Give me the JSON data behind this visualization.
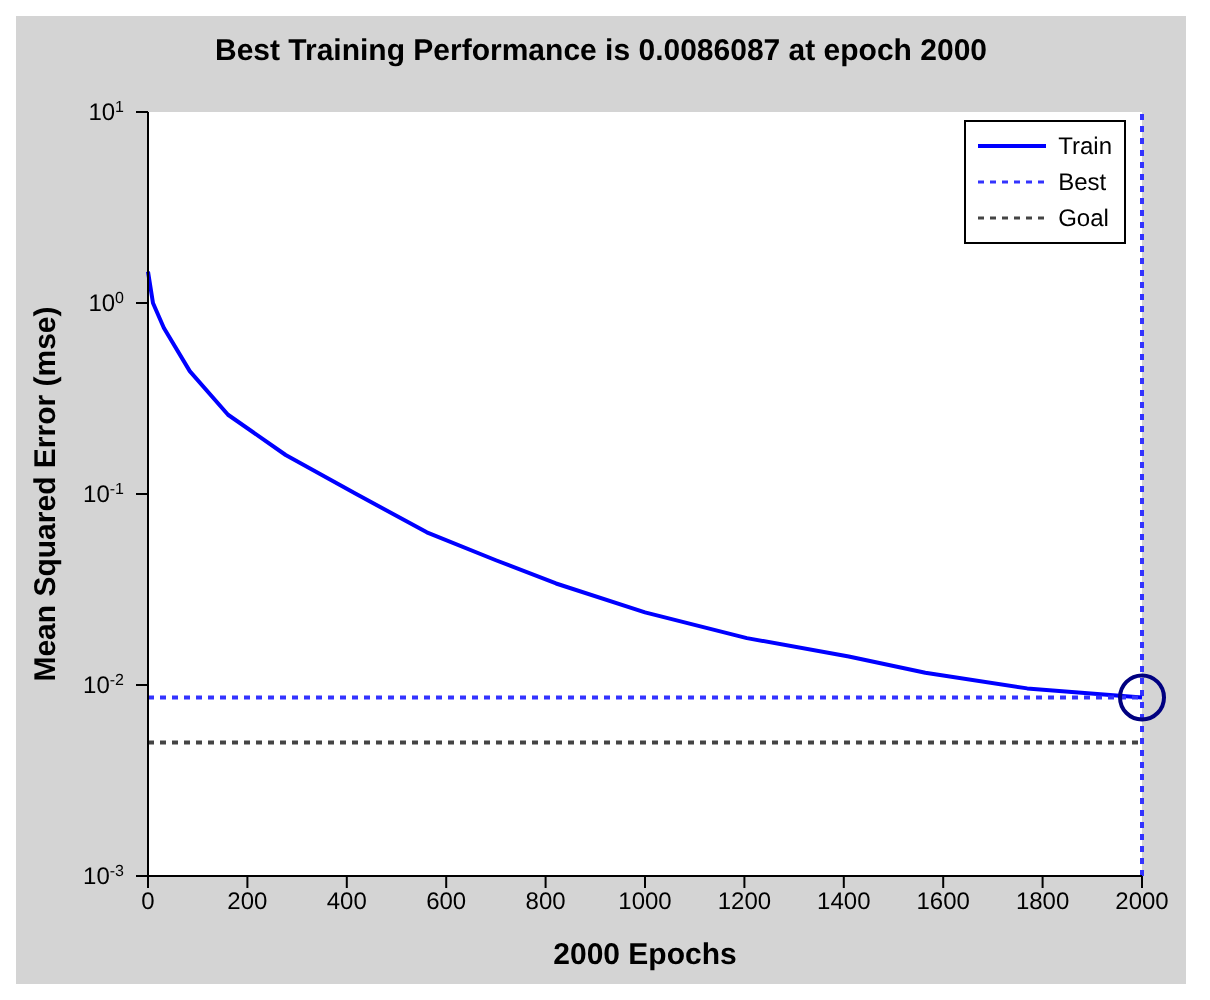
{
  "chart_data": {
    "type": "line",
    "title": "Best Training Performance is 0.0086087 at epoch 2000",
    "xlabel": "2000 Epochs",
    "ylabel": "Mean Squared Error  (mse)",
    "xlim": [
      0,
      2000
    ],
    "xticks": [
      0,
      200,
      400,
      600,
      800,
      1000,
      1200,
      1400,
      1600,
      1800,
      2000
    ],
    "ylim": [
      0.001,
      10
    ],
    "yticks": [
      {
        "value": 0.001,
        "label": "10$^{-3}$"
      },
      {
        "value": 0.01,
        "label": "10$^{-2}$"
      },
      {
        "value": 0.1,
        "label": "10$^{-1}$"
      },
      {
        "value": 1,
        "label": "10$^{0}$"
      },
      {
        "value": 10,
        "label": "10$^{1}$"
      }
    ],
    "log": "y",
    "grid": false,
    "legend": "top right",
    "ref_lines": [
      {
        "axis": "x",
        "value": 2000,
        "color": "#3333ff",
        "line_style": "dotted"
      }
    ],
    "series": [
      {
        "name": "Train",
        "color": "#0000ff",
        "line_style": "solid",
        "marker": "none",
        "x": [
          0,
          10,
          32,
          84,
          161,
          277,
          419,
          561,
          700,
          821,
          1000,
          1205,
          1410,
          1564,
          1769,
          2000
        ],
        "values": [
          1.46,
          1.0,
          0.74,
          0.44,
          0.26,
          0.16,
          0.1,
          0.063,
          0.045,
          0.034,
          0.024,
          0.0176,
          0.0141,
          0.0116,
          0.0096,
          0.0086087
        ]
      },
      {
        "name": "Best",
        "color": "#3333ff",
        "line_style": "dotted",
        "marker": "none",
        "x": [
          0,
          2000
        ],
        "values": [
          0.0086087,
          0.0086087
        ]
      },
      {
        "name": "Goal",
        "color": "#444444",
        "line_style": "dotted",
        "marker": "none",
        "x": [
          0,
          2000
        ],
        "values": [
          0.005,
          0.005
        ]
      },
      {
        "type": "scatter",
        "color": "#000080",
        "marker": "circle",
        "x": [
          2000
        ],
        "values": [
          0.0086087
        ]
      }
    ]
  }
}
